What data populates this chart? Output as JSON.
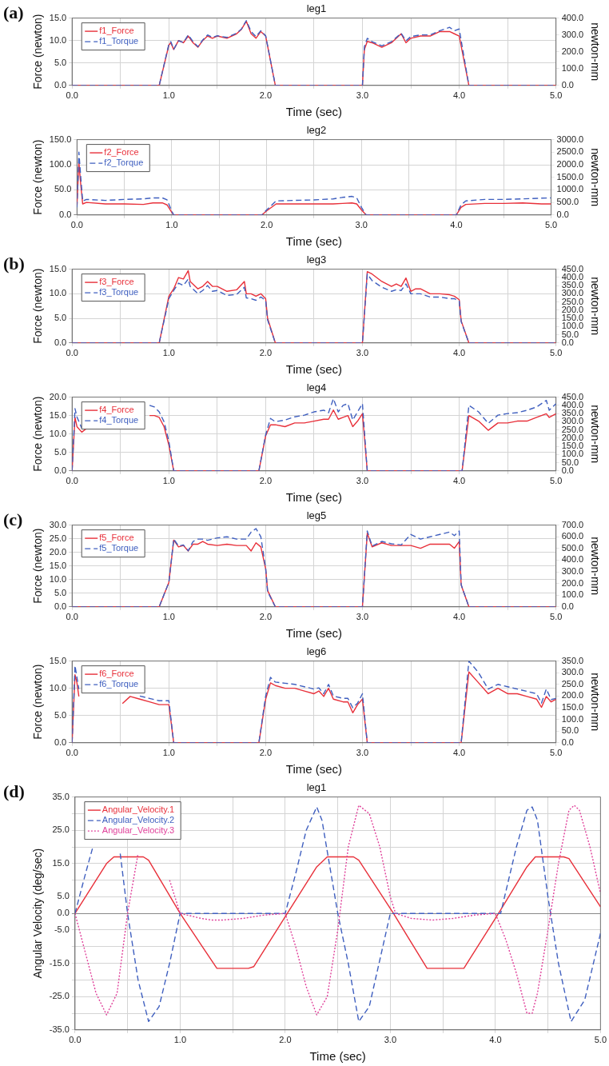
{
  "chart_data": [
    {
      "type": "line",
      "title": "leg1",
      "xlabel": "Time (sec)",
      "ylabel": "Force (newton)",
      "y2label": "newton-mm",
      "annotations": [
        "(a)"
      ],
      "legend": "top left",
      "grid": true,
      "x": [
        0,
        0.9,
        1.0,
        1.02,
        1.05,
        1.1,
        1.15,
        1.2,
        1.25,
        1.3,
        1.35,
        1.4,
        1.45,
        1.5,
        1.6,
        1.7,
        1.75,
        1.8,
        1.85,
        1.9,
        1.95,
        2.0,
        2.1,
        3.0,
        3.02,
        3.05,
        3.1,
        3.2,
        3.3,
        3.4,
        3.45,
        3.5,
        3.6,
        3.7,
        3.8,
        3.9,
        3.95,
        4.0,
        4.1,
        5.0
      ],
      "series": [
        {
          "name": "f1_Force",
          "color": "#e8303a",
          "line_style": "solid",
          "values": [
            0,
            0,
            9.0,
            9.5,
            8.0,
            10.0,
            9.5,
            11.0,
            9.5,
            8.5,
            10.0,
            11.0,
            10.5,
            11.0,
            10.5,
            11.5,
            12.5,
            14.3,
            11.5,
            10.5,
            12.0,
            11.0,
            0,
            0,
            8.0,
            9.8,
            9.5,
            8.5,
            9.5,
            11.5,
            9.5,
            10.5,
            11.0,
            11.0,
            12.0,
            12.0,
            11.5,
            11.0,
            0,
            0
          ]
        },
        {
          "name": "f1_Torque",
          "color": "#3f5fbf",
          "line_style": "dashed",
          "axis": "y2",
          "values": [
            0,
            0,
            245,
            260,
            215,
            265,
            255,
            300,
            260,
            230,
            270,
            300,
            285,
            295,
            285,
            310,
            335,
            385,
            320,
            290,
            325,
            295,
            0,
            0,
            230,
            280,
            260,
            235,
            260,
            310,
            265,
            290,
            300,
            300,
            325,
            345,
            325,
            335,
            0,
            0
          ]
        }
      ],
      "xlim": [
        0,
        5
      ],
      "xticks": [
        {
          "value": 0,
          "label": "0.0"
        },
        {
          "value": 0.5,
          "label": null
        },
        {
          "value": 1,
          "label": "1.0"
        },
        {
          "value": 1.5,
          "label": null
        },
        {
          "value": 2,
          "label": "2.0"
        },
        {
          "value": 2.5,
          "label": null
        },
        {
          "value": 3,
          "label": "3.0"
        },
        {
          "value": 3.5,
          "label": null
        },
        {
          "value": 4,
          "label": "4.0"
        },
        {
          "value": 4.5,
          "label": null
        },
        {
          "value": 5,
          "label": "5.0"
        }
      ],
      "ylim": [
        0,
        15
      ],
      "yticks": [
        {
          "value": 0,
          "label": "0.0"
        },
        {
          "value": 5,
          "label": "5.0"
        },
        {
          "value": 10,
          "label": "10.0"
        },
        {
          "value": 15,
          "label": "15.0"
        }
      ],
      "y2lim": [
        0,
        400
      ],
      "y2ticks": [
        {
          "value": 0,
          "label": "0.0"
        },
        {
          "value": 100,
          "label": "100.0"
        },
        {
          "value": 200,
          "label": "200.0"
        },
        {
          "value": 300,
          "label": "300.0"
        },
        {
          "value": 400,
          "label": "400.0"
        }
      ]
    },
    {
      "type": "line",
      "title": "leg2",
      "xlabel": "Time (sec)",
      "ylabel": "Force (newton)",
      "y2label": "newton-mm",
      "legend": "top left",
      "grid": true,
      "x": [
        0,
        0.02,
        0.04,
        0.06,
        0.1,
        0.3,
        0.5,
        0.7,
        0.8,
        0.9,
        0.95,
        1.0,
        1.02,
        1.95,
        2.0,
        2.1,
        2.3,
        2.5,
        2.7,
        2.8,
        2.9,
        2.95,
        3.0,
        3.05,
        4.0,
        4.05,
        4.1,
        4.3,
        4.5,
        4.7,
        4.9,
        5.0
      ],
      "series": [
        {
          "name": "f2_Force",
          "color": "#e8303a",
          "line_style": "solid",
          "values": [
            20,
            105,
            60,
            22,
            25,
            22,
            22,
            21,
            24,
            24,
            20,
            5,
            0,
            0,
            8,
            22,
            22,
            22,
            22,
            23,
            24,
            22,
            10,
            0,
            0,
            15,
            21,
            23,
            23,
            24,
            22,
            22
          ]
        },
        {
          "name": "f2_Torque",
          "color": "#3f5fbf",
          "line_style": "dashed",
          "axis": "y2",
          "values": [
            300,
            2500,
            1500,
            550,
            620,
            580,
            620,
            640,
            680,
            680,
            600,
            150,
            0,
            0,
            200,
            560,
            580,
            600,
            640,
            700,
            740,
            680,
            300,
            0,
            0,
            400,
            560,
            620,
            620,
            640,
            670,
            680
          ]
        }
      ],
      "xlim": [
        0,
        5
      ],
      "xticks": [
        {
          "value": 0,
          "label": "0.0"
        },
        {
          "value": 0.5,
          "label": null
        },
        {
          "value": 1,
          "label": "1.0"
        },
        {
          "value": 1.5,
          "label": null
        },
        {
          "value": 2,
          "label": "2.0"
        },
        {
          "value": 2.5,
          "label": null
        },
        {
          "value": 3,
          "label": "3.0"
        },
        {
          "value": 3.5,
          "label": null
        },
        {
          "value": 4,
          "label": "4.0"
        },
        {
          "value": 4.5,
          "label": null
        },
        {
          "value": 5,
          "label": "5.0"
        }
      ],
      "ylim": [
        0,
        150
      ],
      "yticks": [
        {
          "value": 0,
          "label": "0.0"
        },
        {
          "value": 50,
          "label": "50.0"
        },
        {
          "value": 100,
          "label": "100.0"
        },
        {
          "value": 150,
          "label": "150.0"
        }
      ],
      "y2lim": [
        0,
        3000
      ],
      "y2ticks": [
        {
          "value": 0,
          "label": "0.0"
        },
        {
          "value": 500,
          "label": "500.0"
        },
        {
          "value": 1000,
          "label": "1000.0"
        },
        {
          "value": 1500,
          "label": "1500.0"
        },
        {
          "value": 2000,
          "label": "2000.0"
        },
        {
          "value": 2500,
          "label": "2500.0"
        },
        {
          "value": 3000,
          "label": "3000.0"
        }
      ]
    },
    {
      "type": "line",
      "title": "leg3",
      "xlabel": "Time (sec)",
      "ylabel": "Force (newton)",
      "y2label": "newton-mm",
      "annotations": [
        "(b)"
      ],
      "legend": "top left",
      "grid": true,
      "x": [
        0,
        0.9,
        1.0,
        1.05,
        1.1,
        1.15,
        1.2,
        1.22,
        1.3,
        1.35,
        1.4,
        1.45,
        1.5,
        1.6,
        1.7,
        1.78,
        1.8,
        1.85,
        1.9,
        1.95,
        2.0,
        2.02,
        2.1,
        3.0,
        3.05,
        3.1,
        3.2,
        3.3,
        3.35,
        3.4,
        3.45,
        3.5,
        3.55,
        3.6,
        3.7,
        3.8,
        3.9,
        3.95,
        4.0,
        4.02,
        4.1,
        5.0
      ],
      "series": [
        {
          "name": "f3_Force",
          "color": "#e8303a",
          "line_style": "solid",
          "values": [
            0,
            0,
            9.5,
            11.0,
            13.3,
            13.0,
            14.7,
            12.5,
            11.0,
            11.5,
            12.5,
            11.5,
            11.5,
            10.5,
            10.8,
            12.5,
            10.0,
            10.0,
            9.5,
            10.0,
            9.0,
            5.0,
            0,
            0,
            14.5,
            14.0,
            12.5,
            11.5,
            12.0,
            11.5,
            13.2,
            10.5,
            11.0,
            11.0,
            10.0,
            10.0,
            9.8,
            9.5,
            8.8,
            4.5,
            0,
            0
          ]
        },
        {
          "name": "f3_Torque",
          "color": "#3f5fbf",
          "line_style": "dashed",
          "axis": "y2",
          "values": [
            0,
            0,
            270,
            320,
            365,
            350,
            390,
            345,
            300,
            320,
            350,
            315,
            320,
            290,
            295,
            340,
            275,
            270,
            260,
            280,
            260,
            140,
            0,
            0,
            420,
            380,
            340,
            315,
            325,
            320,
            360,
            300,
            300,
            300,
            280,
            280,
            270,
            270,
            255,
            130,
            0,
            0
          ]
        }
      ],
      "xlim": [
        0,
        5
      ],
      "xticks": [
        {
          "value": 0,
          "label": "0.0"
        },
        {
          "value": 0.5,
          "label": null
        },
        {
          "value": 1,
          "label": "1.0"
        },
        {
          "value": 1.5,
          "label": null
        },
        {
          "value": 2,
          "label": "2.0"
        },
        {
          "value": 2.5,
          "label": null
        },
        {
          "value": 3,
          "label": "3.0"
        },
        {
          "value": 3.5,
          "label": null
        },
        {
          "value": 4,
          "label": "4.0"
        },
        {
          "value": 4.5,
          "label": null
        },
        {
          "value": 5,
          "label": "5.0"
        }
      ],
      "ylim": [
        0,
        15
      ],
      "yticks": [
        {
          "value": 0,
          "label": "0.0"
        },
        {
          "value": 5,
          "label": "5.0"
        },
        {
          "value": 10,
          "label": "10.0"
        },
        {
          "value": 15,
          "label": "15.0"
        }
      ],
      "y2lim": [
        0,
        450
      ],
      "y2ticks": [
        {
          "value": 0,
          "label": "0.0"
        },
        {
          "value": 50,
          "label": "50.0"
        },
        {
          "value": 100,
          "label": "100.0"
        },
        {
          "value": 150,
          "label": "150.0"
        },
        {
          "value": 200,
          "label": "200.0"
        },
        {
          "value": 250,
          "label": "250.0"
        },
        {
          "value": 300,
          "label": "300.0"
        },
        {
          "value": 350,
          "label": "350.0"
        },
        {
          "value": 400,
          "label": "400.0"
        },
        {
          "value": 450,
          "label": "450.0"
        }
      ]
    },
    {
      "type": "line",
      "title": "leg4",
      "xlabel": "Time (sec)",
      "ylabel": "Force (newton)",
      "y2label": "newton-mm",
      "legend": "top left",
      "grid": true,
      "x": [
        0,
        0.03,
        0.05,
        0.1,
        0.15,
        0.2,
        0.3,
        0.4,
        0.5,
        0.52,
        0.6,
        0.7,
        0.8,
        0.85,
        0.9,
        0.95,
        1.0,
        1.05,
        1.93,
        2.0,
        2.05,
        2.1,
        2.2,
        2.3,
        2.4,
        2.5,
        2.6,
        2.65,
        2.7,
        2.75,
        2.8,
        2.85,
        2.9,
        2.95,
        3.0,
        3.05,
        4.03,
        4.1,
        4.2,
        4.3,
        4.4,
        4.5,
        4.6,
        4.7,
        4.8,
        4.9,
        4.93,
        5.0
      ],
      "series": [
        {
          "name": "f4_Force",
          "color": "#e8303a",
          "line_style": "solid",
          "values": [
            0,
            14.5,
            12,
            10.5,
            11.5,
            null,
            null,
            null,
            null,
            null,
            null,
            null,
            15,
            15,
            14.5,
            12,
            7,
            0,
            0,
            9.5,
            12.5,
            12.5,
            12,
            13,
            13,
            13.5,
            14,
            14,
            16.5,
            14,
            14.5,
            15,
            12,
            13.5,
            15.5,
            0,
            0,
            15,
            13.5,
            11,
            13,
            13,
            13.5,
            13.5,
            14.5,
            15.5,
            14.5,
            15.5
          ]
        },
        {
          "name": "f4_Torque",
          "color": "#3f5fbf",
          "line_style": "dashed",
          "axis": "y2",
          "values": [
            0,
            380,
            330,
            260,
            null,
            null,
            null,
            null,
            null,
            null,
            null,
            null,
            400,
            390,
            360,
            300,
            180,
            0,
            0,
            220,
            320,
            300,
            310,
            330,
            340,
            360,
            370,
            355,
            440,
            360,
            400,
            410,
            310,
            360,
            410,
            0,
            0,
            400,
            360,
            290,
            340,
            350,
            355,
            370,
            390,
            430,
            370,
            410
          ]
        }
      ],
      "xlim": [
        0,
        5
      ],
      "xticks": [
        {
          "value": 0,
          "label": "0.0"
        },
        {
          "value": 0.5,
          "label": null
        },
        {
          "value": 1,
          "label": "1.0"
        },
        {
          "value": 1.5,
          "label": null
        },
        {
          "value": 2,
          "label": "2.0"
        },
        {
          "value": 2.5,
          "label": null
        },
        {
          "value": 3,
          "label": "3.0"
        },
        {
          "value": 3.5,
          "label": null
        },
        {
          "value": 4,
          "label": "4.0"
        },
        {
          "value": 4.5,
          "label": null
        },
        {
          "value": 5,
          "label": "5.0"
        }
      ],
      "ylim": [
        0,
        20
      ],
      "yticks": [
        {
          "value": 0,
          "label": "0.0"
        },
        {
          "value": 5,
          "label": "5.0"
        },
        {
          "value": 10,
          "label": "10.0"
        },
        {
          "value": 15,
          "label": "15.0"
        },
        {
          "value": 20,
          "label": "20.0"
        }
      ],
      "y2lim": [
        0,
        450
      ],
      "y2ticks": [
        {
          "value": 0,
          "label": "0.0"
        },
        {
          "value": 50,
          "label": "50.0"
        },
        {
          "value": 100,
          "label": "100.0"
        },
        {
          "value": 150,
          "label": "150.0"
        },
        {
          "value": 200,
          "label": "200.0"
        },
        {
          "value": 250,
          "label": "250.0"
        },
        {
          "value": 300,
          "label": "300.0"
        },
        {
          "value": 350,
          "label": "350.0"
        },
        {
          "value": 400,
          "label": "400.0"
        },
        {
          "value": 450,
          "label": "450.0"
        }
      ]
    },
    {
      "type": "line",
      "title": "leg5",
      "xlabel": "Time (sec)",
      "ylabel": "Force (newton)",
      "y2label": "newton-mm",
      "annotations": [
        "(c)"
      ],
      "legend": "top left",
      "grid": true,
      "x": [
        0,
        0.9,
        1.0,
        1.05,
        1.1,
        1.15,
        1.2,
        1.25,
        1.3,
        1.35,
        1.4,
        1.5,
        1.6,
        1.7,
        1.8,
        1.85,
        1.9,
        1.95,
        2.0,
        2.02,
        2.1,
        3.0,
        3.05,
        3.1,
        3.2,
        3.3,
        3.4,
        3.5,
        3.6,
        3.7,
        3.8,
        3.9,
        3.95,
        4.0,
        4.02,
        4.1,
        5.0
      ],
      "series": [
        {
          "name": "f5_Force",
          "color": "#e8303a",
          "line_style": "solid",
          "values": [
            0,
            0,
            9,
            24.5,
            22,
            22.5,
            20.5,
            23,
            23,
            24,
            23,
            22.5,
            23,
            22.5,
            22.5,
            20.5,
            23.5,
            22,
            14,
            6,
            0,
            0,
            27,
            22,
            23.5,
            22.5,
            22.5,
            22.5,
            21.5,
            23,
            23,
            23,
            21.5,
            24,
            8,
            0,
            0
          ]
        },
        {
          "name": "f5_Torque",
          "color": "#3f5fbf",
          "line_style": "dashed",
          "axis": "y2",
          "values": [
            0,
            0,
            210,
            580,
            520,
            530,
            480,
            560,
            580,
            580,
            570,
            590,
            600,
            580,
            580,
            640,
            670,
            600,
            330,
            130,
            0,
            0,
            650,
            520,
            560,
            540,
            530,
            620,
            580,
            600,
            620,
            640,
            610,
            650,
            190,
            0,
            0
          ]
        }
      ],
      "xlim": [
        0,
        5
      ],
      "xticks": [
        {
          "value": 0,
          "label": "0.0"
        },
        {
          "value": 0.5,
          "label": null
        },
        {
          "value": 1,
          "label": "1.0"
        },
        {
          "value": 1.5,
          "label": null
        },
        {
          "value": 2,
          "label": "2.0"
        },
        {
          "value": 2.5,
          "label": null
        },
        {
          "value": 3,
          "label": "3.0"
        },
        {
          "value": 3.5,
          "label": null
        },
        {
          "value": 4,
          "label": "4.0"
        },
        {
          "value": 4.5,
          "label": null
        },
        {
          "value": 5,
          "label": "5.0"
        }
      ],
      "ylim": [
        0,
        30
      ],
      "yticks": [
        {
          "value": 0,
          "label": "0.0"
        },
        {
          "value": 5,
          "label": "5.0"
        },
        {
          "value": 10,
          "label": "10.0"
        },
        {
          "value": 15,
          "label": "15.0"
        },
        {
          "value": 20,
          "label": "20.0"
        },
        {
          "value": 25,
          "label": "25.0"
        },
        {
          "value": 30,
          "label": "30.0"
        }
      ],
      "y2lim": [
        0,
        700
      ],
      "y2ticks": [
        {
          "value": 0,
          "label": "0.0"
        },
        {
          "value": 100,
          "label": "100.0"
        },
        {
          "value": 200,
          "label": "200.0"
        },
        {
          "value": 300,
          "label": "300.0"
        },
        {
          "value": 400,
          "label": "400.0"
        },
        {
          "value": 500,
          "label": "500.0"
        },
        {
          "value": 600,
          "label": "600.0"
        },
        {
          "value": 700,
          "label": "700.0"
        }
      ]
    },
    {
      "type": "line",
      "title": "leg6",
      "xlabel": "Time (sec)",
      "ylabel": "Force (newton)",
      "y2label": "newton-mm",
      "legend": "top left",
      "grid": true,
      "x": [
        0,
        0.03,
        0.05,
        0.07,
        0.1,
        0.15,
        0.2,
        0.3,
        0.4,
        0.5,
        0.52,
        0.6,
        0.7,
        0.8,
        0.9,
        1.0,
        1.05,
        1.93,
        2.0,
        2.05,
        2.1,
        2.2,
        2.3,
        2.4,
        2.5,
        2.55,
        2.6,
        2.65,
        2.7,
        2.8,
        2.85,
        2.9,
        2.95,
        3.0,
        3.05,
        4.02,
        4.1,
        4.2,
        4.3,
        4.4,
        4.5,
        4.6,
        4.7,
        4.8,
        4.85,
        4.9,
        4.95,
        5.0
      ],
      "series": [
        {
          "name": "f6_Force",
          "color": "#e8303a",
          "line_style": "solid",
          "values": [
            0,
            12.5,
            11,
            8.5,
            null,
            null,
            null,
            null,
            null,
            null,
            7.2,
            8.5,
            8,
            7.5,
            7,
            7,
            0,
            0,
            8,
            11,
            10.5,
            10,
            10,
            9.5,
            9,
            9.5,
            8.5,
            10,
            8,
            7.5,
            7.5,
            5.5,
            7,
            8,
            0,
            0,
            13,
            11,
            9,
            10,
            9,
            9,
            8.5,
            8,
            6.5,
            8.5,
            7.5,
            8
          ]
        },
        {
          "name": "f6_Torque",
          "color": "#3f5fbf",
          "line_style": "dashed",
          "axis": "y2",
          "values": [
            0,
            330,
            280,
            230,
            null,
            null,
            null,
            null,
            null,
            null,
            null,
            null,
            200,
            190,
            180,
            180,
            0,
            0,
            200,
            280,
            260,
            255,
            250,
            240,
            230,
            235,
            210,
            250,
            200,
            190,
            190,
            150,
            170,
            210,
            0,
            0,
            350,
            300,
            230,
            250,
            240,
            230,
            220,
            210,
            170,
            230,
            185,
            190
          ]
        }
      ],
      "xlim": [
        0,
        5
      ],
      "xticks": [
        {
          "value": 0,
          "label": "0.0"
        },
        {
          "value": 0.5,
          "label": null
        },
        {
          "value": 1,
          "label": "1.0"
        },
        {
          "value": 1.5,
          "label": null
        },
        {
          "value": 2,
          "label": "2.0"
        },
        {
          "value": 2.5,
          "label": null
        },
        {
          "value": 3,
          "label": "3.0"
        },
        {
          "value": 3.5,
          "label": null
        },
        {
          "value": 4,
          "label": "4.0"
        },
        {
          "value": 4.5,
          "label": null
        },
        {
          "value": 5,
          "label": "5.0"
        }
      ],
      "ylim": [
        0,
        15
      ],
      "yticks": [
        {
          "value": 0,
          "label": "0.0"
        },
        {
          "value": 5,
          "label": "5.0"
        },
        {
          "value": 10,
          "label": "10.0"
        },
        {
          "value": 15,
          "label": "15.0"
        }
      ],
      "y2lim": [
        0,
        350
      ],
      "y2ticks": [
        {
          "value": 0,
          "label": "0.0"
        },
        {
          "value": 50,
          "label": "50.0"
        },
        {
          "value": 100,
          "label": "100.0"
        },
        {
          "value": 150,
          "label": "150.0"
        },
        {
          "value": 200,
          "label": "200.0"
        },
        {
          "value": 250,
          "label": "250.0"
        },
        {
          "value": 300,
          "label": "300.0"
        },
        {
          "value": 350,
          "label": "350.0"
        }
      ]
    },
    {
      "type": "line",
      "title": "leg1",
      "xlabel": "Time (sec)",
      "ylabel": "Angular Velocity (deg/sec)",
      "annotations": [
        "(d)"
      ],
      "legend": "top left",
      "grid": true,
      "series": [
        {
          "name": "Angular_Velocity.1",
          "color": "#e8303a",
          "line_style": "solid",
          "x": [
            0,
            0.1,
            0.2,
            0.3,
            0.37,
            0.65,
            0.7,
            1.0,
            1.35,
            1.65,
            1.7,
            2.02,
            2.3,
            2.4,
            2.65,
            2.7,
            3.03,
            3.35,
            3.7,
            4.03,
            4.3,
            4.38,
            4.65,
            4.7,
            5.0
          ],
          "values": [
            0,
            5,
            10,
            15,
            17,
            17,
            16,
            0,
            -16.5,
            -16.5,
            -16,
            0,
            14,
            17,
            17,
            16,
            0,
            -16.5,
            -16.5,
            0,
            14,
            17,
            17,
            16.5,
            2
          ]
        },
        {
          "name": "Angular_Velocity.2",
          "color": "#3f5fbf",
          "line_style": "dashed",
          "x": [
            0,
            0.1,
            0.17,
            0.25,
            0.43,
            0.5,
            0.6,
            0.7,
            0.8,
            0.9,
            1.0,
            1.5,
            2.0,
            2.1,
            2.2,
            2.3,
            2.35,
            2.5,
            2.6,
            2.7,
            2.8,
            3.0,
            3.5,
            4.05,
            4.2,
            4.3,
            4.35,
            4.4,
            4.5,
            4.6,
            4.72,
            4.85,
            5.0
          ],
          "values": [
            0,
            12,
            20,
            null,
            18,
            0,
            -20,
            -32.5,
            -28,
            -15,
            0,
            0,
            0,
            12,
            25,
            32,
            28,
            0,
            -15,
            -32.5,
            -28,
            0,
            0,
            0,
            20,
            31,
            32,
            28,
            5,
            -15,
            -32.5,
            -26,
            -6
          ]
        },
        {
          "name": "Angular_Velocity.3",
          "color": "#e0409a",
          "line_style": "dotted",
          "x": [
            0,
            0.1,
            0.2,
            0.3,
            0.4,
            0.5,
            0.6,
            0.7,
            0.8,
            0.9,
            1.0,
            1.2,
            1.3,
            1.4,
            1.6,
            1.8,
            2.0,
            2.1,
            2.2,
            2.3,
            2.4,
            2.5,
            2.6,
            2.7,
            2.8,
            2.9,
            3.0,
            3.05,
            3.2,
            3.4,
            3.6,
            3.8,
            4.0,
            4.1,
            4.2,
            4.3,
            4.35,
            4.4,
            4.5,
            4.6,
            4.7,
            4.75,
            4.8,
            4.9,
            5.0
          ],
          "values": [
            0,
            -12,
            -24,
            -30.5,
            -24,
            0,
            18,
            null,
            null,
            10,
            0,
            -1.5,
            -2,
            -2,
            -1.5,
            -0.5,
            0,
            -10,
            -22,
            -30.5,
            -25,
            -5,
            20,
            32.5,
            30,
            20,
            5,
            0,
            -1.5,
            -2,
            -1.5,
            -0.5,
            0,
            -8,
            -18,
            -30,
            -30,
            -24,
            -5,
            15,
            31,
            32.5,
            31,
            20,
            6
          ]
        }
      ],
      "xlim": [
        0,
        5
      ],
      "xticks": [
        {
          "value": 0,
          "label": "0.0"
        },
        {
          "value": 0.5,
          "label": null
        },
        {
          "value": 1,
          "label": "1.0"
        },
        {
          "value": 1.5,
          "label": null
        },
        {
          "value": 2,
          "label": "2.0"
        },
        {
          "value": 2.5,
          "label": null
        },
        {
          "value": 3,
          "label": "3.0"
        },
        {
          "value": 3.5,
          "label": null
        },
        {
          "value": 4,
          "label": "4.0"
        },
        {
          "value": 4.5,
          "label": null
        },
        {
          "value": 5,
          "label": "5.0"
        }
      ],
      "ylim": [
        -35,
        35
      ],
      "yticks": [
        {
          "value": -35,
          "label": "-35.0"
        },
        {
          "value": -30,
          "label": null
        },
        {
          "value": -25,
          "label": "-25.0"
        },
        {
          "value": -20,
          "label": null
        },
        {
          "value": -15,
          "label": "-15.0"
        },
        {
          "value": -10,
          "label": null
        },
        {
          "value": -5,
          "label": "-5.0"
        },
        {
          "value": 0,
          "label": "0.0"
        },
        {
          "value": 5,
          "label": "5.0"
        },
        {
          "value": 10,
          "label": null
        },
        {
          "value": 15,
          "label": "15.0"
        },
        {
          "value": 20,
          "label": null
        },
        {
          "value": 25,
          "label": "25.0"
        },
        {
          "value": 30,
          "label": null
        },
        {
          "value": 35,
          "label": "35.0"
        }
      ]
    }
  ]
}
